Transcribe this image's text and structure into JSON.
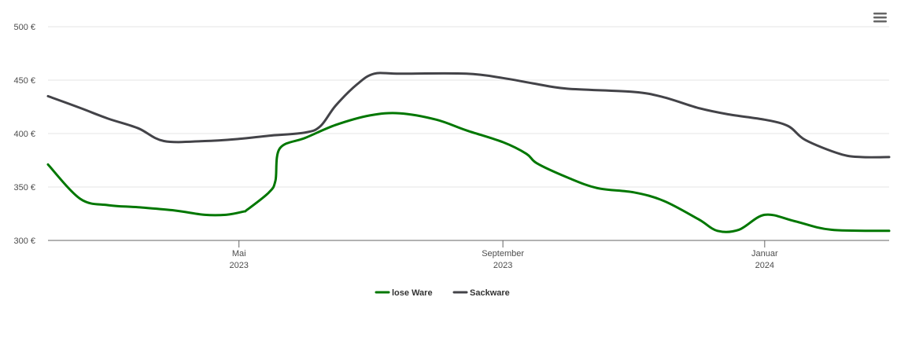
{
  "chart_data": {
    "type": "line",
    "title": "",
    "xlabel": "",
    "ylabel": "",
    "ylim": [
      300,
      500
    ],
    "y_ticks": [
      "300 €",
      "350 €",
      "400 €",
      "450 €",
      "500 €"
    ],
    "y_tick_values": [
      300,
      350,
      400,
      450,
      500
    ],
    "x_ticks": [
      {
        "month": "Mai",
        "year": "2023",
        "date": "2023-05-01"
      },
      {
        "month": "September",
        "year": "2023",
        "date": "2023-09-01"
      },
      {
        "month": "Januar",
        "year": "2024",
        "date": "2024-01-01"
      }
    ],
    "xlim": [
      "2023-02-01",
      "2024-02-28"
    ],
    "grid": true,
    "legend_position": "bottom-center",
    "series": [
      {
        "name": "lose Ware",
        "color": "#007700",
        "points": [
          [
            "2023-02-01",
            371
          ],
          [
            "2023-02-16",
            339
          ],
          [
            "2023-03-01",
            333
          ],
          [
            "2023-03-15",
            331
          ],
          [
            "2023-04-01",
            328
          ],
          [
            "2023-04-15",
            324
          ],
          [
            "2023-04-25",
            324
          ],
          [
            "2023-05-03",
            327
          ],
          [
            "2023-05-05",
            329
          ],
          [
            "2023-05-15",
            345
          ],
          [
            "2023-05-18",
            356
          ],
          [
            "2023-05-20",
            386
          ],
          [
            "2023-06-01",
            396
          ],
          [
            "2023-06-15",
            408
          ],
          [
            "2023-07-01",
            417
          ],
          [
            "2023-07-15",
            419
          ],
          [
            "2023-08-01",
            413
          ],
          [
            "2023-08-15",
            403
          ],
          [
            "2023-09-01",
            392
          ],
          [
            "2023-09-12",
            381
          ],
          [
            "2023-09-17",
            372
          ],
          [
            "2023-10-01",
            359
          ],
          [
            "2023-10-15",
            349
          ],
          [
            "2023-11-01",
            345
          ],
          [
            "2023-11-15",
            337
          ],
          [
            "2023-12-01",
            320
          ],
          [
            "2023-12-10",
            309
          ],
          [
            "2023-12-20",
            310
          ],
          [
            "2024-01-01",
            324
          ],
          [
            "2024-01-15",
            318
          ],
          [
            "2024-02-01",
            310
          ],
          [
            "2024-02-28",
            309
          ]
        ]
      },
      {
        "name": "Sackware",
        "color": "#434348",
        "points": [
          [
            "2023-02-01",
            435
          ],
          [
            "2023-02-16",
            424
          ],
          [
            "2023-03-01",
            414
          ],
          [
            "2023-03-15",
            405
          ],
          [
            "2023-03-27",
            393
          ],
          [
            "2023-04-15",
            393
          ],
          [
            "2023-05-01",
            395
          ],
          [
            "2023-05-15",
            398
          ],
          [
            "2023-06-01",
            401
          ],
          [
            "2023-06-08",
            407
          ],
          [
            "2023-06-15",
            426
          ],
          [
            "2023-06-25",
            446
          ],
          [
            "2023-07-03",
            456
          ],
          [
            "2023-07-15",
            456
          ],
          [
            "2023-08-15",
            456
          ],
          [
            "2023-09-01",
            452
          ],
          [
            "2023-09-15",
            447
          ],
          [
            "2023-10-01",
            442
          ],
          [
            "2023-11-01",
            439
          ],
          [
            "2023-11-15",
            434
          ],
          [
            "2023-12-01",
            424
          ],
          [
            "2023-12-15",
            418
          ],
          [
            "2024-01-01",
            413
          ],
          [
            "2024-01-12",
            407
          ],
          [
            "2024-01-20",
            394
          ],
          [
            "2024-02-05",
            381
          ],
          [
            "2024-02-15",
            378
          ],
          [
            "2024-02-28",
            378
          ]
        ]
      }
    ]
  }
}
